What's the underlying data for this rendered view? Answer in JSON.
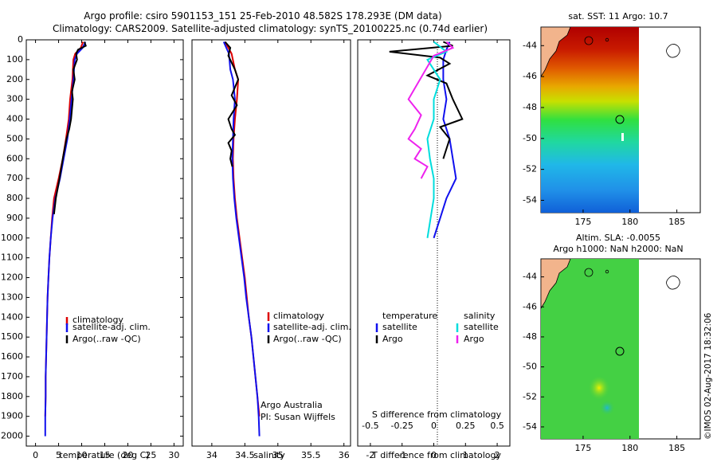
{
  "header": {
    "line1": "Argo profile: csiro 5901153_151 25-Feb-2010 48.582S 178.293E (DM data)",
    "line2": "Climatology: CARS2009. Satellite-adjusted climatology: synTS_20100225.nc (0.74d earlier)"
  },
  "colors": {
    "climatology": "#dd0000",
    "satellite": "#1010ee",
    "argo": "#000000",
    "salinity_sat": "#00dddd",
    "salinity_argo": "#ee22ee",
    "land": "#f2b48c"
  },
  "depth_axis": {
    "ticks": [
      0,
      100,
      200,
      300,
      400,
      500,
      600,
      700,
      800,
      900,
      1000,
      1100,
      1200,
      1300,
      1400,
      1500,
      1600,
      1700,
      1800,
      1900,
      2000
    ]
  },
  "chart_data": [
    {
      "type": "line",
      "name": "temperature-profile",
      "xlabel": "temperature (deg C)",
      "xlim": [
        -2,
        32
      ],
      "ylim": [
        0,
        2050
      ],
      "xticks": [
        0,
        5,
        10,
        15,
        20,
        25,
        30
      ],
      "legend": [
        "climatology",
        "satellite-adj. clim.",
        "Argo(..raw -QC)"
      ],
      "series": [
        {
          "name": "climatology",
          "x": [
            10.3,
            9.8,
            8.6,
            8.2,
            8.0,
            7.5,
            7.2,
            6.6,
            5.9,
            5.0,
            4.0,
            3.6,
            3.3,
            3.0,
            2.8,
            2.6,
            2.5,
            2.4,
            2.3,
            2.2,
            2.2,
            2.1
          ],
          "y": [
            10,
            40,
            70,
            100,
            200,
            300,
            400,
            500,
            600,
            700,
            800,
            900,
            1000,
            1100,
            1200,
            1300,
            1400,
            1500,
            1600,
            1700,
            1800,
            1900
          ]
        },
        {
          "name": "satellite",
          "x": [
            10.8,
            10.2,
            9.0,
            8.5,
            8.2,
            7.8,
            7.4,
            6.9,
            6.1,
            5.3,
            4.3,
            3.7,
            3.3,
            3.0,
            2.8,
            2.6,
            2.5,
            2.4,
            2.3,
            2.2,
            2.2,
            2.1,
            2.1
          ],
          "y": [
            10,
            40,
            70,
            100,
            200,
            300,
            400,
            500,
            600,
            700,
            800,
            900,
            1000,
            1100,
            1200,
            1300,
            1400,
            1500,
            1600,
            1700,
            1800,
            1900,
            2000
          ]
        },
        {
          "name": "argo",
          "x": [
            10.6,
            10.9,
            9.2,
            8.8,
            9.0,
            8.2,
            8.5,
            7.9,
            8.1,
            7.7,
            7.3,
            6.7,
            5.9,
            5.2,
            4.4,
            4.0
          ],
          "y": [
            10,
            30,
            50,
            70,
            100,
            150,
            200,
            260,
            300,
            400,
            450,
            500,
            600,
            700,
            800,
            880
          ]
        }
      ]
    },
    {
      "type": "line",
      "name": "salinity-profile",
      "xlabel": "salinity",
      "xlim": [
        33.7,
        36.1
      ],
      "ylim": [
        0,
        2050
      ],
      "xticks": [
        34,
        34.5,
        35,
        35.5,
        36
      ],
      "legend": [
        "climatology",
        "satellite-adj. clim.",
        "Argo(..raw -QC)"
      ],
      "annotation": [
        "Argo Australia",
        "PI: Susan Wijffels"
      ],
      "series": [
        {
          "name": "climatology",
          "x": [
            34.2,
            34.25,
            34.3,
            34.35,
            34.4,
            34.38,
            34.35,
            34.33,
            34.32,
            34.33,
            34.35,
            34.38,
            34.42,
            34.46,
            34.5,
            34.53,
            34.56,
            34.6,
            34.63,
            34.66,
            34.69,
            34.72
          ],
          "y": [
            10,
            40,
            70,
            150,
            200,
            300,
            400,
            500,
            600,
            700,
            800,
            900,
            1000,
            1100,
            1200,
            1300,
            1400,
            1500,
            1600,
            1700,
            1800,
            1900
          ]
        },
        {
          "name": "satellite",
          "x": [
            34.18,
            34.22,
            34.26,
            34.28,
            34.32,
            34.35,
            34.33,
            34.32,
            34.31,
            34.32,
            34.34,
            34.37,
            34.41,
            34.45,
            34.49,
            34.52,
            34.56,
            34.6,
            34.63,
            34.66,
            34.69,
            34.71,
            34.72
          ],
          "y": [
            10,
            40,
            70,
            150,
            200,
            300,
            400,
            500,
            600,
            700,
            800,
            900,
            1000,
            1100,
            1200,
            1300,
            1400,
            1500,
            1600,
            1700,
            1800,
            1900,
            2000
          ]
        },
        {
          "name": "argo",
          "x": [
            34.2,
            34.28,
            34.25,
            34.35,
            34.4,
            34.3,
            34.38,
            34.25,
            34.3,
            34.35,
            34.25,
            34.3,
            34.28,
            34.31
          ],
          "y": [
            10,
            40,
            80,
            150,
            200,
            280,
            330,
            400,
            450,
            480,
            520,
            560,
            600,
            640
          ]
        }
      ]
    },
    {
      "type": "line",
      "name": "difference-profile",
      "xlabel": "T difference from climatology",
      "xlabel2": "S difference from climatology",
      "xlim": [
        -2.4,
        2.4
      ],
      "ylim": [
        0,
        2050
      ],
      "xticks_T": [
        -2,
        -1,
        0,
        1,
        2
      ],
      "xticks_S": [
        "-0.5",
        "-0.25",
        "0",
        "0.25",
        "0.5"
      ],
      "legend_T": [
        "temperature",
        "satellite",
        "Argo"
      ],
      "legend_S": [
        "salinity",
        "satellite",
        "Argo"
      ],
      "series": [
        {
          "name": "T satellite",
          "x": [
            0.5,
            0.4,
            0.3,
            0.3,
            0.4,
            0.3,
            0.5,
            0.6,
            0.7,
            0.4,
            0.2,
            0.1,
            0.0
          ],
          "y": [
            10,
            50,
            100,
            200,
            300,
            400,
            500,
            600,
            700,
            800,
            900,
            950,
            1000
          ]
        },
        {
          "name": "T argo",
          "x": [
            0.3,
            0.6,
            -1.4,
            0.2,
            0.5,
            -0.2,
            0.4,
            0.6,
            0.9,
            0.2,
            0.5,
            0.4,
            0.3
          ],
          "y": [
            10,
            30,
            60,
            90,
            120,
            180,
            220,
            300,
            400,
            440,
            500,
            550,
            600
          ]
        },
        {
          "name": "S satellite",
          "x": [
            0.0,
            0.1,
            -0.05,
            0.05,
            0.0,
            0.0,
            -0.05,
            -0.03,
            0.0,
            0.0,
            -0.05
          ],
          "y": [
            10,
            60,
            100,
            200,
            300,
            400,
            500,
            600,
            700,
            800,
            1000
          ]
        },
        {
          "name": "S argo",
          "x": [
            0.1,
            0.15,
            0.0,
            -0.2,
            -0.1,
            -0.15,
            -0.2,
            -0.1,
            -0.15,
            -0.05,
            -0.1
          ],
          "y": [
            10,
            40,
            80,
            300,
            380,
            450,
            500,
            550,
            600,
            640,
            700
          ]
        }
      ]
    },
    {
      "type": "heatmap",
      "name": "sst-map",
      "title": "sat. SST: 11 Argo: 10.7",
      "xticks": [
        175,
        180,
        185
      ],
      "yticks": [
        -44,
        -46,
        -48,
        -50,
        -52,
        -54
      ],
      "xlim": [
        170.5,
        187.5
      ],
      "ylim": [
        -54.8,
        -42.8
      ],
      "argo_position": [
        178.293,
        -48.582
      ]
    },
    {
      "type": "heatmap",
      "name": "sla-map",
      "title": "Altim. SLA: -0.0055",
      "subtitle": "Argo h1000: NaN h2000: NaN",
      "xticks": [
        175,
        180,
        185
      ],
      "yticks": [
        -44,
        -46,
        -48,
        -50,
        -52,
        -54
      ],
      "xlim": [
        170.5,
        187.5
      ],
      "ylim": [
        -54.8,
        -42.8
      ],
      "argo_position": [
        178.293,
        -48.582
      ]
    }
  ],
  "footer": {
    "stamp": "©IMOS 02-Aug-2017 18:32:06"
  }
}
